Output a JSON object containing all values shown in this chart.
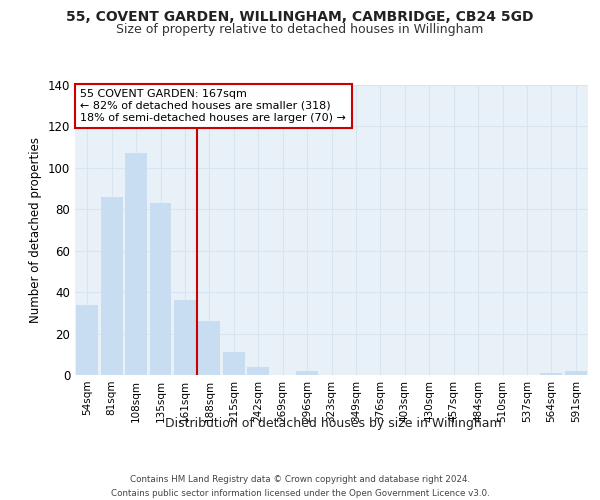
{
  "title_line1": "55, COVENT GARDEN, WILLINGHAM, CAMBRIDGE, CB24 5GD",
  "title_line2": "Size of property relative to detached houses in Willingham",
  "xlabel": "Distribution of detached houses by size in Willingham",
  "ylabel": "Number of detached properties",
  "categories": [
    "54sqm",
    "81sqm",
    "108sqm",
    "135sqm",
    "161sqm",
    "188sqm",
    "215sqm",
    "242sqm",
    "269sqm",
    "296sqm",
    "323sqm",
    "349sqm",
    "376sqm",
    "403sqm",
    "430sqm",
    "457sqm",
    "484sqm",
    "510sqm",
    "537sqm",
    "564sqm",
    "591sqm"
  ],
  "values": [
    34,
    86,
    107,
    83,
    36,
    26,
    11,
    4,
    0,
    2,
    0,
    0,
    0,
    0,
    0,
    0,
    0,
    0,
    0,
    1,
    2
  ],
  "bar_color": "#c8ddf2",
  "bar_edge_color": "#c8ddf2",
  "grid_color": "#d8e4f0",
  "background_color": "#e8f0f8",
  "annotation_line1": "55 COVENT GARDEN: 167sqm",
  "annotation_line2": "← 82% of detached houses are smaller (318)",
  "annotation_line3": "18% of semi-detached houses are larger (70) →",
  "annotation_box_facecolor": "#ffffff",
  "annotation_box_edgecolor": "#cc0000",
  "vline_x": 4.5,
  "vline_color": "#cc0000",
  "ylim": [
    0,
    140
  ],
  "yticks": [
    0,
    20,
    40,
    60,
    80,
    100,
    120,
    140
  ],
  "footer_line1": "Contains HM Land Registry data © Crown copyright and database right 2024.",
  "footer_line2": "Contains public sector information licensed under the Open Government Licence v3.0."
}
